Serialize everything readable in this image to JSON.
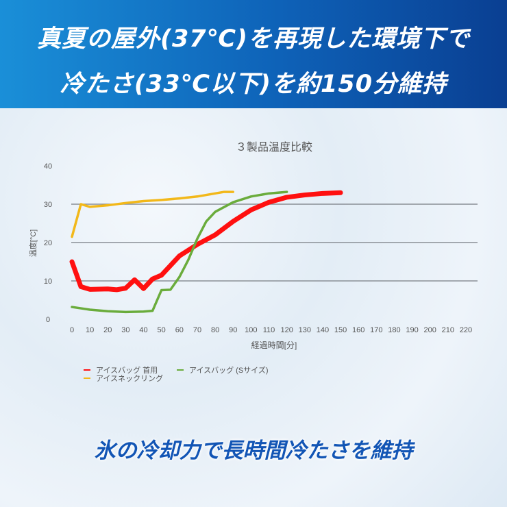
{
  "banner": {
    "line1": "真夏の屋外(37℃)を再現した環境下で",
    "line2": "冷たさ(33℃以下)を約150分維持"
  },
  "footer": {
    "text": "氷の冷却力で長時間冷たさを維持"
  },
  "chart_data": {
    "type": "line",
    "title": "３製品温度比較",
    "xlabel": "経過時間[分]",
    "ylabel": "温度[°C]",
    "xlim": [
      0,
      220
    ],
    "ylim": [
      0,
      40
    ],
    "xticks": [
      0,
      10,
      20,
      30,
      40,
      50,
      60,
      70,
      80,
      90,
      100,
      110,
      120,
      130,
      140,
      150,
      160,
      170,
      180,
      190,
      200,
      210,
      220
    ],
    "yticks": [
      0,
      10,
      20,
      30,
      40
    ],
    "grid": "horizontal",
    "legend": "bottom-left",
    "series": [
      {
        "name": "アイスバッグ 首用",
        "color": "#ff1010",
        "x": [
          0,
          5,
          10,
          20,
          25,
          30,
          35,
          40,
          45,
          50,
          55,
          60,
          70,
          80,
          90,
          100,
          110,
          120,
          130,
          140,
          150
        ],
        "y": [
          15,
          8.5,
          7.8,
          7.9,
          7.7,
          8.1,
          10.3,
          8,
          10.5,
          11.5,
          14,
          16.5,
          19.5,
          22,
          25.5,
          28.5,
          30.5,
          31.8,
          32.4,
          32.8,
          33
        ]
      },
      {
        "name": "アイスバッグ (Sサイズ)",
        "color": "#6aac3c",
        "x": [
          0,
          10,
          20,
          30,
          40,
          45,
          50,
          55,
          60,
          65,
          70,
          75,
          80,
          90,
          100,
          110,
          120
        ],
        "y": [
          3.2,
          2.5,
          2.1,
          1.9,
          2,
          2.2,
          7.6,
          7.7,
          11,
          15.5,
          21,
          25.5,
          28,
          30.5,
          32,
          32.8,
          33.2
        ]
      },
      {
        "name": "アイスネックリング",
        "color": "#f2b81a",
        "x": [
          0,
          5,
          10,
          20,
          30,
          40,
          50,
          60,
          70,
          80,
          85,
          90
        ],
        "y": [
          21.5,
          30,
          29.3,
          29.7,
          30.3,
          30.8,
          31.1,
          31.5,
          32,
          32.8,
          33.2,
          33.2
        ]
      }
    ]
  }
}
